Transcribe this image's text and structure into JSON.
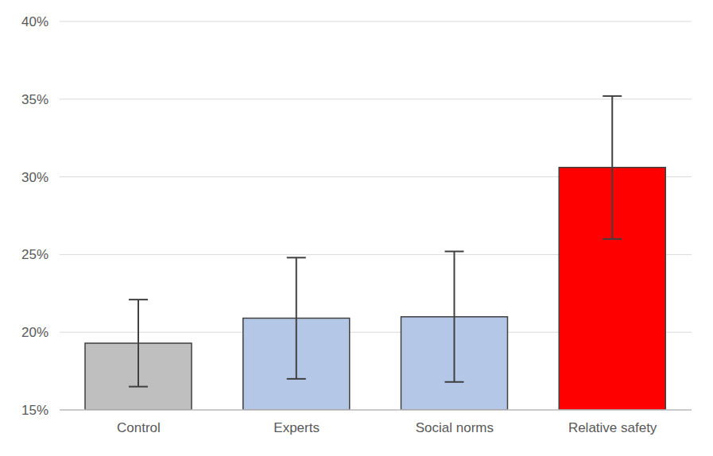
{
  "chart_data": {
    "type": "bar",
    "categories": [
      "Control",
      "Experts",
      "Social norms",
      "Relative safety"
    ],
    "values": [
      19.3,
      20.9,
      21.0,
      30.6
    ],
    "errors": [
      2.8,
      3.9,
      4.2,
      4.6
    ],
    "colors": [
      "#bfbfbf",
      "#b4c7e7",
      "#b4c7e7",
      "#ff0000"
    ],
    "ylim": [
      15,
      40
    ],
    "yticks": [
      {
        "value": 15,
        "label": "15%"
      },
      {
        "value": 20,
        "label": "20%"
      },
      {
        "value": 25,
        "label": "25%"
      },
      {
        "value": 30,
        "label": "30%"
      },
      {
        "value": 35,
        "label": "35%"
      },
      {
        "value": 40,
        "label": "40%"
      }
    ],
    "grid": true
  }
}
